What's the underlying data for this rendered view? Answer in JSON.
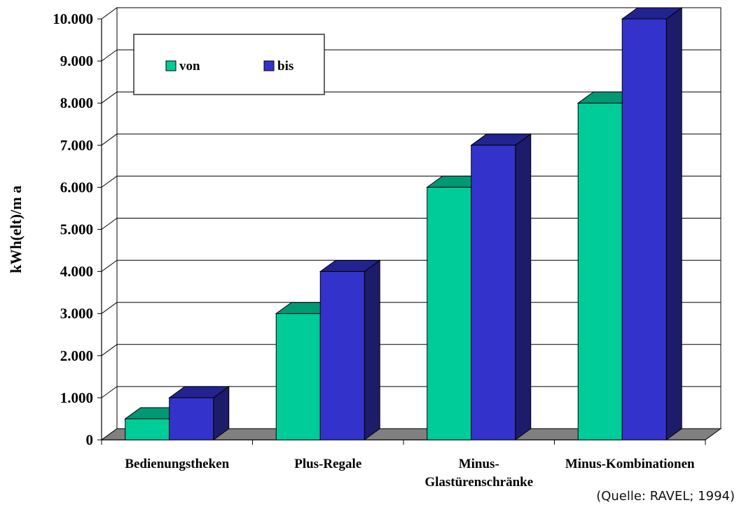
{
  "chart_data": {
    "type": "bar",
    "categories": [
      "Bedienungstheken",
      "Plus-Regale",
      "Minus-Glastürenschränke",
      "Minus-Kombinationen"
    ],
    "category_lines": [
      [
        "Bedienungstheken"
      ],
      [
        "Plus-Regale"
      ],
      [
        "Minus-",
        "Glastürenschränke"
      ],
      [
        "Minus-Kombinationen"
      ]
    ],
    "series": [
      {
        "name": "von",
        "values": [
          500,
          3000,
          6000,
          8000
        ],
        "color": "#00cc99",
        "top_color": "#009973"
      },
      {
        "name": "bis",
        "values": [
          1000,
          4000,
          7000,
          10000
        ],
        "color": "#3333cc",
        "top_color": "#23238f",
        "side_color": "#1c1c6a"
      }
    ],
    "ylabel": "kWh(elt)/m a",
    "ylim": [
      0,
      10000
    ],
    "yticks": [
      0,
      1000,
      2000,
      3000,
      4000,
      5000,
      6000,
      7000,
      8000,
      9000,
      10000
    ],
    "ytick_labels": [
      "0",
      "1.000",
      "2.000",
      "3.000",
      "4.000",
      "5.000",
      "6.000",
      "7.000",
      "8.000",
      "9.000",
      "10.000"
    ],
    "grid": true,
    "legend_position": "top-left",
    "style": "3d-clustered-column",
    "floor_color": "#808080"
  },
  "source_text": "(Quelle: RAVEL; 1994)"
}
